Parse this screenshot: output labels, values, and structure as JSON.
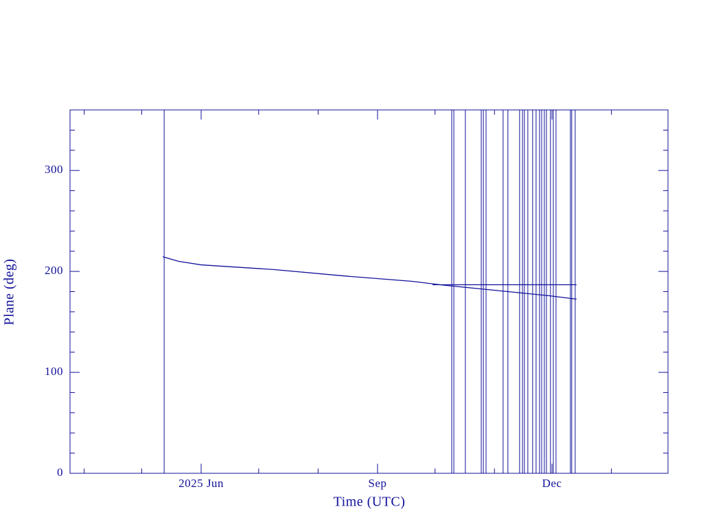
{
  "chart_data": {
    "type": "line",
    "x_label": "Time (UTC)",
    "y_label": "Plane (deg)",
    "color": "#10109a",
    "xlim": [
      -68.4,
      243.5
    ],
    "ylim": [
      0,
      360
    ],
    "xticks": [
      {
        "value": 0,
        "label": "2025 Jun"
      },
      {
        "value": 92,
        "label": "Sep"
      },
      {
        "value": 183,
        "label": "Dec"
      }
    ],
    "x_minor_ticks": [
      -61,
      -31,
      30,
      61,
      122,
      153,
      214
    ],
    "yticks": [
      0,
      100,
      200,
      300
    ],
    "y_minor_ticks": [
      20,
      40,
      60,
      80,
      120,
      140,
      160,
      180,
      220,
      240,
      260,
      280,
      320,
      340
    ],
    "series": [
      {
        "x": [
          -20,
          -11.8,
          0,
          38.3,
          74.1,
          109.9,
          127.8,
          145.7,
          163.6,
          181.5,
          195.8
        ],
        "values": [
          214.5,
          210,
          206.5,
          201.8,
          195.6,
          190.2,
          186.1,
          182.7,
          179.3,
          175.9,
          172.5
        ]
      },
      {
        "x": [
          120.7,
          160,
          195.8
        ],
        "values": [
          186.8,
          186.8,
          186.8
        ]
      }
    ],
    "events": [
      -19.3,
      130.7,
      131.8,
      137.8,
      146.1,
      147.2,
      148.6,
      157.5,
      160.0,
      166.1,
      167.6,
      168.6,
      170.4,
      172.9,
      174.7,
      176.5,
      177.6,
      179.0,
      180.1,
      182.2,
      183.7,
      185.1,
      192.6,
      193.3,
      195.1
    ]
  }
}
